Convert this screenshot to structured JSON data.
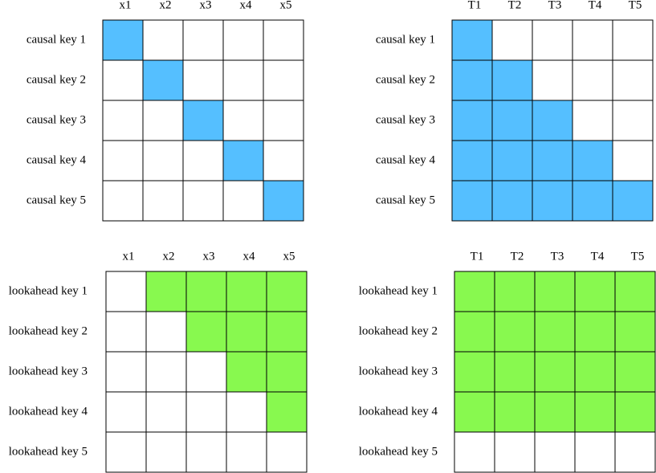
{
  "panels": [
    {
      "columns": [
        "x1",
        "x2",
        "x3",
        "x4",
        "x5"
      ],
      "rows": [
        "causal key 1",
        "causal key 2",
        "causal key 3",
        "causal key 4",
        "causal key 5"
      ],
      "color": "#55bfff",
      "filled": [
        [
          true,
          false,
          false,
          false,
          false
        ],
        [
          false,
          true,
          false,
          false,
          false
        ],
        [
          false,
          false,
          true,
          false,
          false
        ],
        [
          false,
          false,
          false,
          true,
          false
        ],
        [
          false,
          false,
          false,
          false,
          true
        ]
      ]
    },
    {
      "columns": [
        "T1",
        "T2",
        "T3",
        "T4",
        "T5"
      ],
      "rows": [
        "causal key 1",
        "causal key 2",
        "causal key 3",
        "causal key 4",
        "causal key 5"
      ],
      "color": "#55bfff",
      "filled": [
        [
          true,
          false,
          false,
          false,
          false
        ],
        [
          true,
          true,
          false,
          false,
          false
        ],
        [
          true,
          true,
          true,
          false,
          false
        ],
        [
          true,
          true,
          true,
          true,
          false
        ],
        [
          true,
          true,
          true,
          true,
          true
        ]
      ]
    },
    {
      "columns": [
        "x1",
        "x2",
        "x3",
        "x4",
        "x5"
      ],
      "rows": [
        "lookahead key 1",
        "lookahead key 2",
        "lookahead key 3",
        "lookahead key 4",
        "lookahead key 5"
      ],
      "color": "#88f94f",
      "filled": [
        [
          false,
          true,
          true,
          true,
          true
        ],
        [
          false,
          false,
          true,
          true,
          true
        ],
        [
          false,
          false,
          false,
          true,
          true
        ],
        [
          false,
          false,
          false,
          false,
          true
        ],
        [
          false,
          false,
          false,
          false,
          false
        ]
      ]
    },
    {
      "columns": [
        "T1",
        "T2",
        "T3",
        "T4",
        "T5"
      ],
      "rows": [
        "lookahead key 1",
        "lookahead key 2",
        "lookahead key 3",
        "lookahead key 4",
        "lookahead key 5"
      ],
      "color": "#88f94f",
      "filled": [
        [
          true,
          true,
          true,
          true,
          true
        ],
        [
          true,
          true,
          true,
          true,
          true
        ],
        [
          true,
          true,
          true,
          true,
          true
        ],
        [
          true,
          true,
          true,
          true,
          true
        ],
        [
          false,
          false,
          false,
          false,
          false
        ]
      ]
    }
  ]
}
